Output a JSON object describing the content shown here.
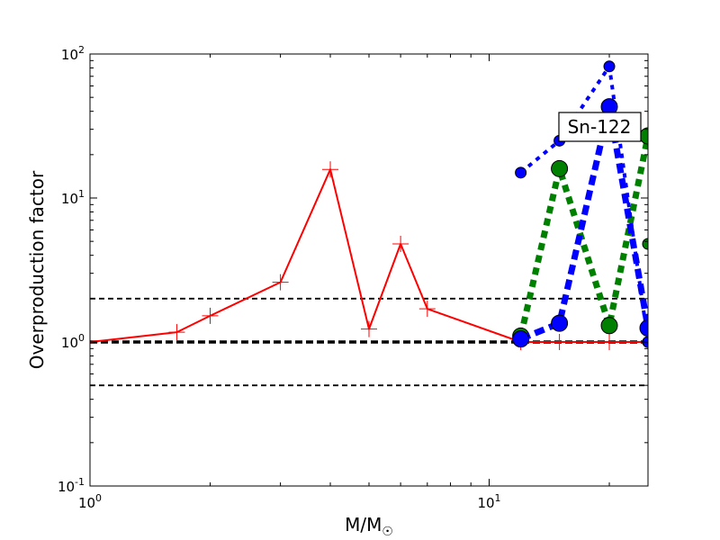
{
  "chart_data": {
    "type": "line",
    "xscale": "log",
    "yscale": "log",
    "xlim": [
      1,
      25
    ],
    "ylim": [
      0.1,
      100
    ],
    "xlabel": "M/M",
    "xlabel_sub": "☉",
    "ylabel": "Overproduction factor",
    "x_ticks": [
      {
        "base": "10",
        "exp": "0",
        "value": 1
      },
      {
        "base": "10",
        "exp": "1",
        "value": 10
      }
    ],
    "y_ticks": [
      {
        "base": "10",
        "exp": "-1",
        "value": 0.1
      },
      {
        "base": "10",
        "exp": "0",
        "value": 1
      },
      {
        "base": "10",
        "exp": "1",
        "value": 10
      },
      {
        "base": "10",
        "exp": "2",
        "value": 100
      }
    ],
    "annotation": "Sn-122",
    "reference_lines": [
      {
        "y": 2.0,
        "style": "dashed-thin",
        "color": "#000000"
      },
      {
        "y": 1.0,
        "style": "dashed-thick",
        "color": "#000000"
      },
      {
        "y": 0.5,
        "style": "dashed-thin",
        "color": "#000000"
      }
    ],
    "series": [
      {
        "style": "solid",
        "marker": "plus",
        "color": "#ff0000",
        "x": [
          1.0,
          1.65,
          2.0,
          3.0,
          4.0,
          5.0,
          6.0,
          7.0,
          12.0,
          15.0,
          20.0,
          25.0
        ],
        "y": [
          1.0,
          1.17,
          1.52,
          2.6,
          15.8,
          1.23,
          4.8,
          1.7,
          1.0,
          1.0,
          1.0,
          1.0
        ]
      },
      {
        "style": "dotted-thin",
        "marker": "circle",
        "color": "#0000ff",
        "x": [
          12.0,
          15.0,
          20.0,
          25.0
        ],
        "y": [
          15.0,
          25.0,
          82.0,
          1.0
        ]
      },
      {
        "style": "dotted-thick",
        "marker": "circle",
        "color": "#008000",
        "x": [
          12.0,
          15.0,
          20.0,
          25.0
        ],
        "y": [
          1.1,
          16.0,
          1.3,
          27.0
        ]
      },
      {
        "style": "dashed-thick",
        "marker": "circle",
        "color": "#0000ff",
        "x": [
          12.0,
          15.0,
          20.0,
          25.0
        ],
        "y": [
          1.05,
          1.35,
          43.0,
          1.25
        ]
      },
      {
        "style": "dotted",
        "marker": "circle",
        "color": "#008000",
        "x": [
          25.0
        ],
        "y": [
          4.8
        ]
      }
    ]
  }
}
